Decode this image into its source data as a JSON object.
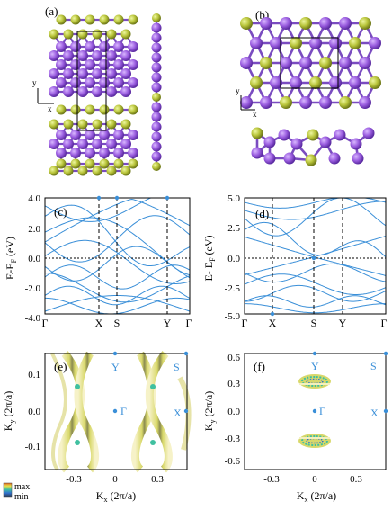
{
  "panels": {
    "a": {
      "label": "(a)",
      "axes": {
        "x": "x",
        "y": "y"
      }
    },
    "b": {
      "label": "(b)",
      "axes": {
        "x": "x",
        "y": "y"
      }
    },
    "c": {
      "label": "(c)",
      "ylabel": "E-E",
      "ylabel_sub": "F",
      "ylabel_unit": " (eV)",
      "yticks": [
        "4.0",
        "2.0",
        "0.0",
        "-2.0",
        "-4.0"
      ],
      "kpoints": [
        "Γ",
        "X",
        "S",
        "Y",
        "Γ"
      ]
    },
    "d": {
      "label": "(d)",
      "ylabel": "E- E",
      "ylabel_sub": "F",
      "ylabel_unit": " (eV)",
      "yticks": [
        "5.0",
        "2.5",
        "0.0",
        "-2.5",
        "-5.0"
      ],
      "kpoints": [
        "Γ",
        "X",
        "S",
        "Y",
        "Γ"
      ]
    },
    "e": {
      "label": "(e)",
      "ylabel": "K",
      "ylabel_sub": "y",
      "ylabel_unit": " (2π/a)",
      "xlabel": "K",
      "xlabel_sub": "x",
      "xlabel_unit": " (2π/a)",
      "yticks": [
        "0.1",
        "0.0",
        "-0.1"
      ],
      "xticks": [
        "-0.3",
        "0",
        "0.3"
      ],
      "points": [
        "Y",
        "S",
        "Γ",
        "X"
      ]
    },
    "f": {
      "label": "(f)",
      "ylabel": "K",
      "ylabel_sub": "y",
      "ylabel_unit": " (2π/a)",
      "xlabel": "K",
      "xlabel_sub": "x",
      "xlabel_unit": " (2π/a)",
      "yticks": [
        "0.6",
        "0.3",
        "0.0",
        "-0.3",
        "-0.6"
      ],
      "xticks": [
        "-0.3",
        "0",
        "0.3"
      ],
      "points": [
        "Y",
        "S",
        "Γ",
        "X"
      ]
    }
  },
  "colorbar": {
    "max": "max",
    "min": "min"
  },
  "colors": {
    "band": "#3a8fd8",
    "purple": "#9b5ee0",
    "yellow": "#b8c43a",
    "bg": "#ffffff"
  },
  "chart_data": [
    {
      "type": "line",
      "panel": "c",
      "ylim": [
        -4.8,
        4.0
      ],
      "kpath": [
        "Γ",
        "X",
        "S",
        "Y",
        "Γ"
      ],
      "fermi_level": 0.0
    },
    {
      "type": "line",
      "panel": "d",
      "ylim": [
        -5.2,
        5.0
      ],
      "kpath": [
        "Γ",
        "X",
        "S",
        "Y",
        "Γ"
      ],
      "fermi_level": 0.0
    },
    {
      "type": "heatmap",
      "panel": "e",
      "xlim": [
        -0.5,
        0.5
      ],
      "ylim": [
        -0.17,
        0.17
      ],
      "colorbar": [
        "min",
        "max"
      ]
    },
    {
      "type": "heatmap",
      "panel": "f",
      "xlim": [
        -0.5,
        0.5
      ],
      "ylim": [
        -0.65,
        0.65
      ],
      "colorbar": [
        "min",
        "max"
      ]
    }
  ]
}
